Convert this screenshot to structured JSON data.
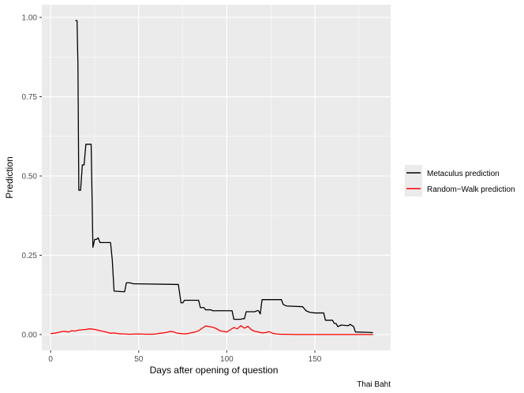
{
  "chart_data": {
    "type": "line",
    "xlabel": "Days after opening of question",
    "ylabel": "Prediction",
    "caption": "Thai Baht",
    "xlim": [
      -5,
      193
    ],
    "ylim": [
      -0.05,
      1.04
    ],
    "x_ticks": [
      0,
      50,
      100,
      150
    ],
    "y_ticks": [
      0.0,
      0.25,
      0.5,
      0.75,
      1.0
    ],
    "y_tick_labels": [
      "0.00",
      "0.25",
      "0.50",
      "0.75",
      "1.00"
    ],
    "grid": true,
    "background": "#ebebeb",
    "legend_position": "right",
    "series": [
      {
        "name": "Metaculus prediction",
        "color": "#000000",
        "x": [
          14,
          15,
          15.5,
          16,
          17,
          18,
          19,
          20,
          21,
          22,
          23,
          24,
          25,
          26,
          27,
          28,
          33,
          34,
          35,
          36,
          41,
          42,
          43,
          45,
          47,
          48,
          72,
          72.5,
          74,
          75,
          76,
          78,
          84,
          85,
          87,
          88,
          91,
          92,
          94,
          95,
          103,
          104,
          108,
          109,
          110,
          111,
          116,
          117,
          118,
          119,
          120,
          121,
          122,
          131,
          132,
          133,
          134,
          142,
          143,
          145,
          147,
          150,
          155,
          156,
          157,
          160,
          161,
          162,
          163,
          165,
          168,
          169,
          170,
          172,
          173,
          180,
          183
        ],
        "y": [
          0.99,
          0.99,
          0.85,
          0.455,
          0.455,
          0.535,
          0.535,
          0.6,
          0.6,
          0.6,
          0.6,
          0.275,
          0.3,
          0.3,
          0.305,
          0.29,
          0.29,
          0.29,
          0.235,
          0.137,
          0.135,
          0.135,
          0.163,
          0.163,
          0.16,
          0.16,
          0.158,
          0.158,
          0.1,
          0.1,
          0.108,
          0.108,
          0.108,
          0.085,
          0.085,
          0.078,
          0.078,
          0.075,
          0.075,
          0.075,
          0.075,
          0.048,
          0.048,
          0.05,
          0.05,
          0.072,
          0.072,
          0.075,
          0.075,
          0.065,
          0.11,
          0.11,
          0.11,
          0.11,
          0.095,
          0.092,
          0.09,
          0.088,
          0.088,
          0.075,
          0.07,
          0.068,
          0.068,
          0.045,
          0.045,
          0.045,
          0.035,
          0.035,
          0.025,
          0.03,
          0.028,
          0.028,
          0.032,
          0.025,
          0.008,
          0.007,
          0.006
        ]
      },
      {
        "name": "Random−Walk prediction",
        "color": "#ff0000",
        "x": [
          0,
          2,
          4,
          6,
          8,
          10,
          12,
          14,
          16,
          18,
          20,
          22,
          24,
          26,
          28,
          30,
          32,
          34,
          36,
          38,
          40,
          42,
          44,
          46,
          50,
          54,
          58,
          60,
          62,
          64,
          66,
          68,
          70,
          72,
          74,
          76,
          78,
          80,
          82,
          84,
          86,
          88,
          90,
          92,
          94,
          96,
          98,
          100,
          102,
          104,
          106,
          108,
          110,
          112,
          114,
          116,
          118,
          120,
          122,
          124,
          126,
          128,
          130,
          140,
          150,
          160,
          170,
          183
        ],
        "y": [
          0.003,
          0.004,
          0.006,
          0.009,
          0.01,
          0.008,
          0.012,
          0.011,
          0.014,
          0.015,
          0.016,
          0.018,
          0.017,
          0.015,
          0.012,
          0.01,
          0.007,
          0.004,
          0.005,
          0.003,
          0.002,
          0.002,
          0.001,
          0.001,
          0.002,
          0.001,
          0.001,
          0.002,
          0.004,
          0.005,
          0.007,
          0.01,
          0.008,
          0.004,
          0.003,
          0.002,
          0.003,
          0.006,
          0.008,
          0.012,
          0.02,
          0.027,
          0.025,
          0.023,
          0.019,
          0.012,
          0.01,
          0.008,
          0.015,
          0.022,
          0.018,
          0.028,
          0.02,
          0.026,
          0.015,
          0.01,
          0.008,
          0.005,
          0.006,
          0.009,
          0.004,
          0.002,
          0.001,
          0.0,
          0.0,
          0.0,
          0.0,
          0.0
        ]
      }
    ]
  }
}
